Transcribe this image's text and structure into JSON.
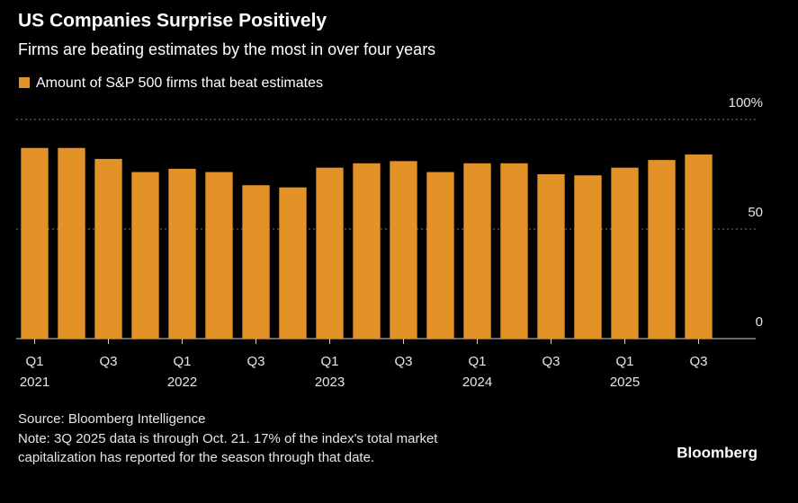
{
  "title": "US Companies Surprise Positively",
  "subtitle": "Firms are beating estimates by the most in over four years",
  "chart_data": {
    "type": "bar",
    "series": [
      {
        "name": "Amount of S&P 500 firms that beat estimates",
        "color": "#e39227",
        "values": [
          87,
          87,
          82,
          76,
          77.5,
          76,
          70,
          69,
          78,
          80,
          81,
          76,
          80,
          80,
          75,
          74.5,
          78,
          81.5,
          84
        ]
      }
    ],
    "categories": [
      "Q1",
      null,
      "Q3",
      null,
      "Q1",
      null,
      "Q3",
      null,
      "Q1",
      null,
      "Q3",
      null,
      "Q1",
      null,
      "Q3",
      null,
      "Q1",
      null,
      "Q3"
    ],
    "category_years": [
      "2021",
      null,
      null,
      null,
      "2022",
      null,
      null,
      null,
      "2023",
      null,
      null,
      null,
      "2024",
      null,
      null,
      null,
      "2025",
      null,
      null
    ],
    "ylim": [
      0,
      100
    ],
    "yticks": [
      0,
      50,
      {
        "value": 100,
        "label": "100%"
      }
    ],
    "grid": true
  },
  "source": "Source: Bloomberg Intelligence",
  "note_lines": [
    "Note: 3Q 2025 data is through Oct. 21. 17% of the index's total market",
    "capitalization has reported for the season through that date."
  ],
  "brand": "Bloomberg"
}
